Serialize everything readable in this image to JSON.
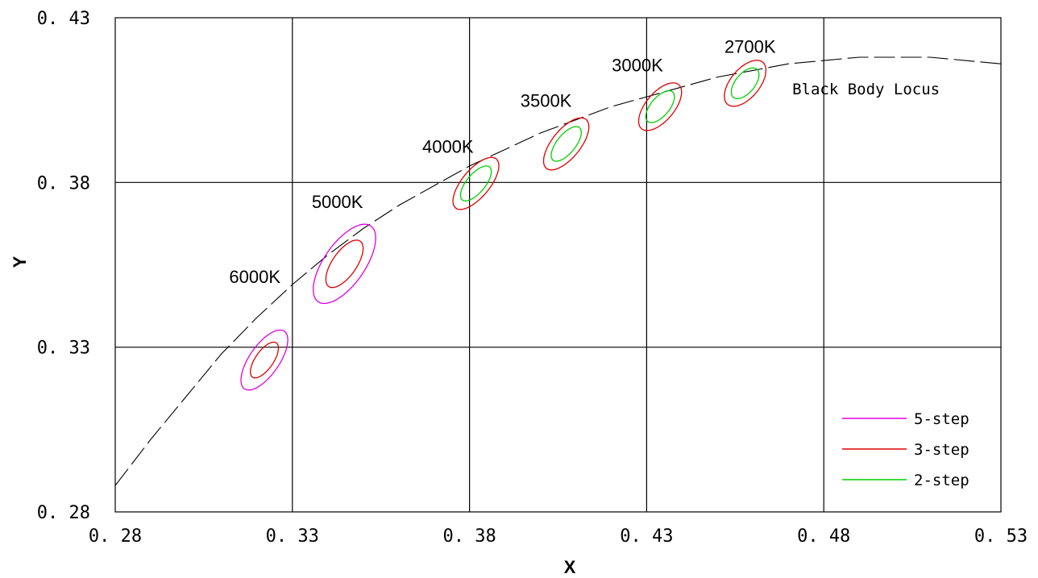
{
  "chart_data": {
    "type": "scatter",
    "title": "",
    "xlabel": "X",
    "ylabel": "Y",
    "xlim": [
      0.28,
      0.53
    ],
    "ylim": [
      0.28,
      0.43
    ],
    "x_ticks": [
      0.28,
      0.33,
      0.38,
      0.43,
      0.48,
      0.53
    ],
    "y_ticks": [
      0.28,
      0.33,
      0.38,
      0.43
    ],
    "x_tick_labels": [
      "0. 28",
      "0. 33",
      "0. 38",
      "0. 43",
      "0. 48",
      "0. 53"
    ],
    "y_tick_labels": [
      "0. 28",
      "0. 33",
      "0. 38",
      "0. 43"
    ],
    "grid": true,
    "legend_position": "bottom-right",
    "black_body_locus": {
      "label": "Black Body Locus",
      "color": "#000000",
      "style": "dashed",
      "points": [
        [
          0.28,
          0.288
        ],
        [
          0.29,
          0.302
        ],
        [
          0.3,
          0.315
        ],
        [
          0.31,
          0.328
        ],
        [
          0.32,
          0.339
        ],
        [
          0.33,
          0.349
        ],
        [
          0.34,
          0.358
        ],
        [
          0.35,
          0.366
        ],
        [
          0.36,
          0.373
        ],
        [
          0.37,
          0.379
        ],
        [
          0.38,
          0.385
        ],
        [
          0.39,
          0.39
        ],
        [
          0.4,
          0.395
        ],
        [
          0.41,
          0.399
        ],
        [
          0.42,
          0.403
        ],
        [
          0.43,
          0.406
        ],
        [
          0.44,
          0.409
        ],
        [
          0.45,
          0.412
        ],
        [
          0.46,
          0.414
        ],
        [
          0.47,
          0.416
        ],
        [
          0.48,
          0.417
        ],
        [
          0.49,
          0.418
        ],
        [
          0.5,
          0.418
        ],
        [
          0.51,
          0.418
        ],
        [
          0.52,
          0.417
        ],
        [
          0.53,
          0.416
        ]
      ]
    },
    "series": [
      {
        "name": "5-step",
        "color": "#e000e0",
        "ellipses": [
          {
            "cct": "6000K",
            "cx": 0.3221,
            "cy": 0.3261,
            "a": 0.0104,
            "b": 0.0043,
            "angle_deg": 58.0
          },
          {
            "cct": "5000K",
            "cx": 0.3447,
            "cy": 0.3553,
            "a": 0.0137,
            "b": 0.0059,
            "angle_deg": 58.0
          }
        ]
      },
      {
        "name": "3-step",
        "color": "#e00000",
        "ellipses": [
          {
            "cct": "6000K",
            "cx": 0.3221,
            "cy": 0.3261,
            "a": 0.0062,
            "b": 0.0026,
            "angle_deg": 58.0
          },
          {
            "cct": "5000K",
            "cx": 0.3447,
            "cy": 0.3553,
            "a": 0.0082,
            "b": 0.0035,
            "angle_deg": 58.0
          },
          {
            "cct": "4000K",
            "cx": 0.3818,
            "cy": 0.3797,
            "a": 0.0094,
            "b": 0.004,
            "angle_deg": 53.2
          },
          {
            "cct": "3500K",
            "cx": 0.4073,
            "cy": 0.3917,
            "a": 0.0093,
            "b": 0.0041,
            "angle_deg": 54.0
          },
          {
            "cct": "3000K",
            "cx": 0.4338,
            "cy": 0.403,
            "a": 0.0085,
            "b": 0.0041,
            "angle_deg": 53.2
          },
          {
            "cct": "2700K",
            "cx": 0.4578,
            "cy": 0.4101,
            "a": 0.0081,
            "b": 0.0042,
            "angle_deg": 53.7
          }
        ]
      },
      {
        "name": "2-step",
        "color": "#00d000",
        "ellipses": [
          {
            "cct": "4000K",
            "cx": 0.3818,
            "cy": 0.3797,
            "a": 0.0063,
            "b": 0.0027,
            "angle_deg": 53.2
          },
          {
            "cct": "3500K",
            "cx": 0.4073,
            "cy": 0.3917,
            "a": 0.0062,
            "b": 0.0027,
            "angle_deg": 54.0
          },
          {
            "cct": "3000K",
            "cx": 0.4338,
            "cy": 0.403,
            "a": 0.0057,
            "b": 0.0027,
            "angle_deg": 53.2
          },
          {
            "cct": "2700K",
            "cx": 0.4578,
            "cy": 0.4101,
            "a": 0.0054,
            "b": 0.0028,
            "angle_deg": 53.7
          }
        ]
      }
    ],
    "annotations": [
      {
        "text": "6000K",
        "x": 0.3194,
        "y": 0.3495
      },
      {
        "text": "5000K",
        "x": 0.3427,
        "y": 0.3723
      },
      {
        "text": "4000K",
        "x": 0.3739,
        "y": 0.389
      },
      {
        "text": "3500K",
        "x": 0.4016,
        "y": 0.4029
      },
      {
        "text": "3000K",
        "x": 0.4274,
        "y": 0.4137
      },
      {
        "text": "2700K",
        "x": 0.4592,
        "y": 0.4193
      },
      {
        "text": "Black Body Locus",
        "x": 0.4711,
        "y": 0.4067
      }
    ]
  }
}
